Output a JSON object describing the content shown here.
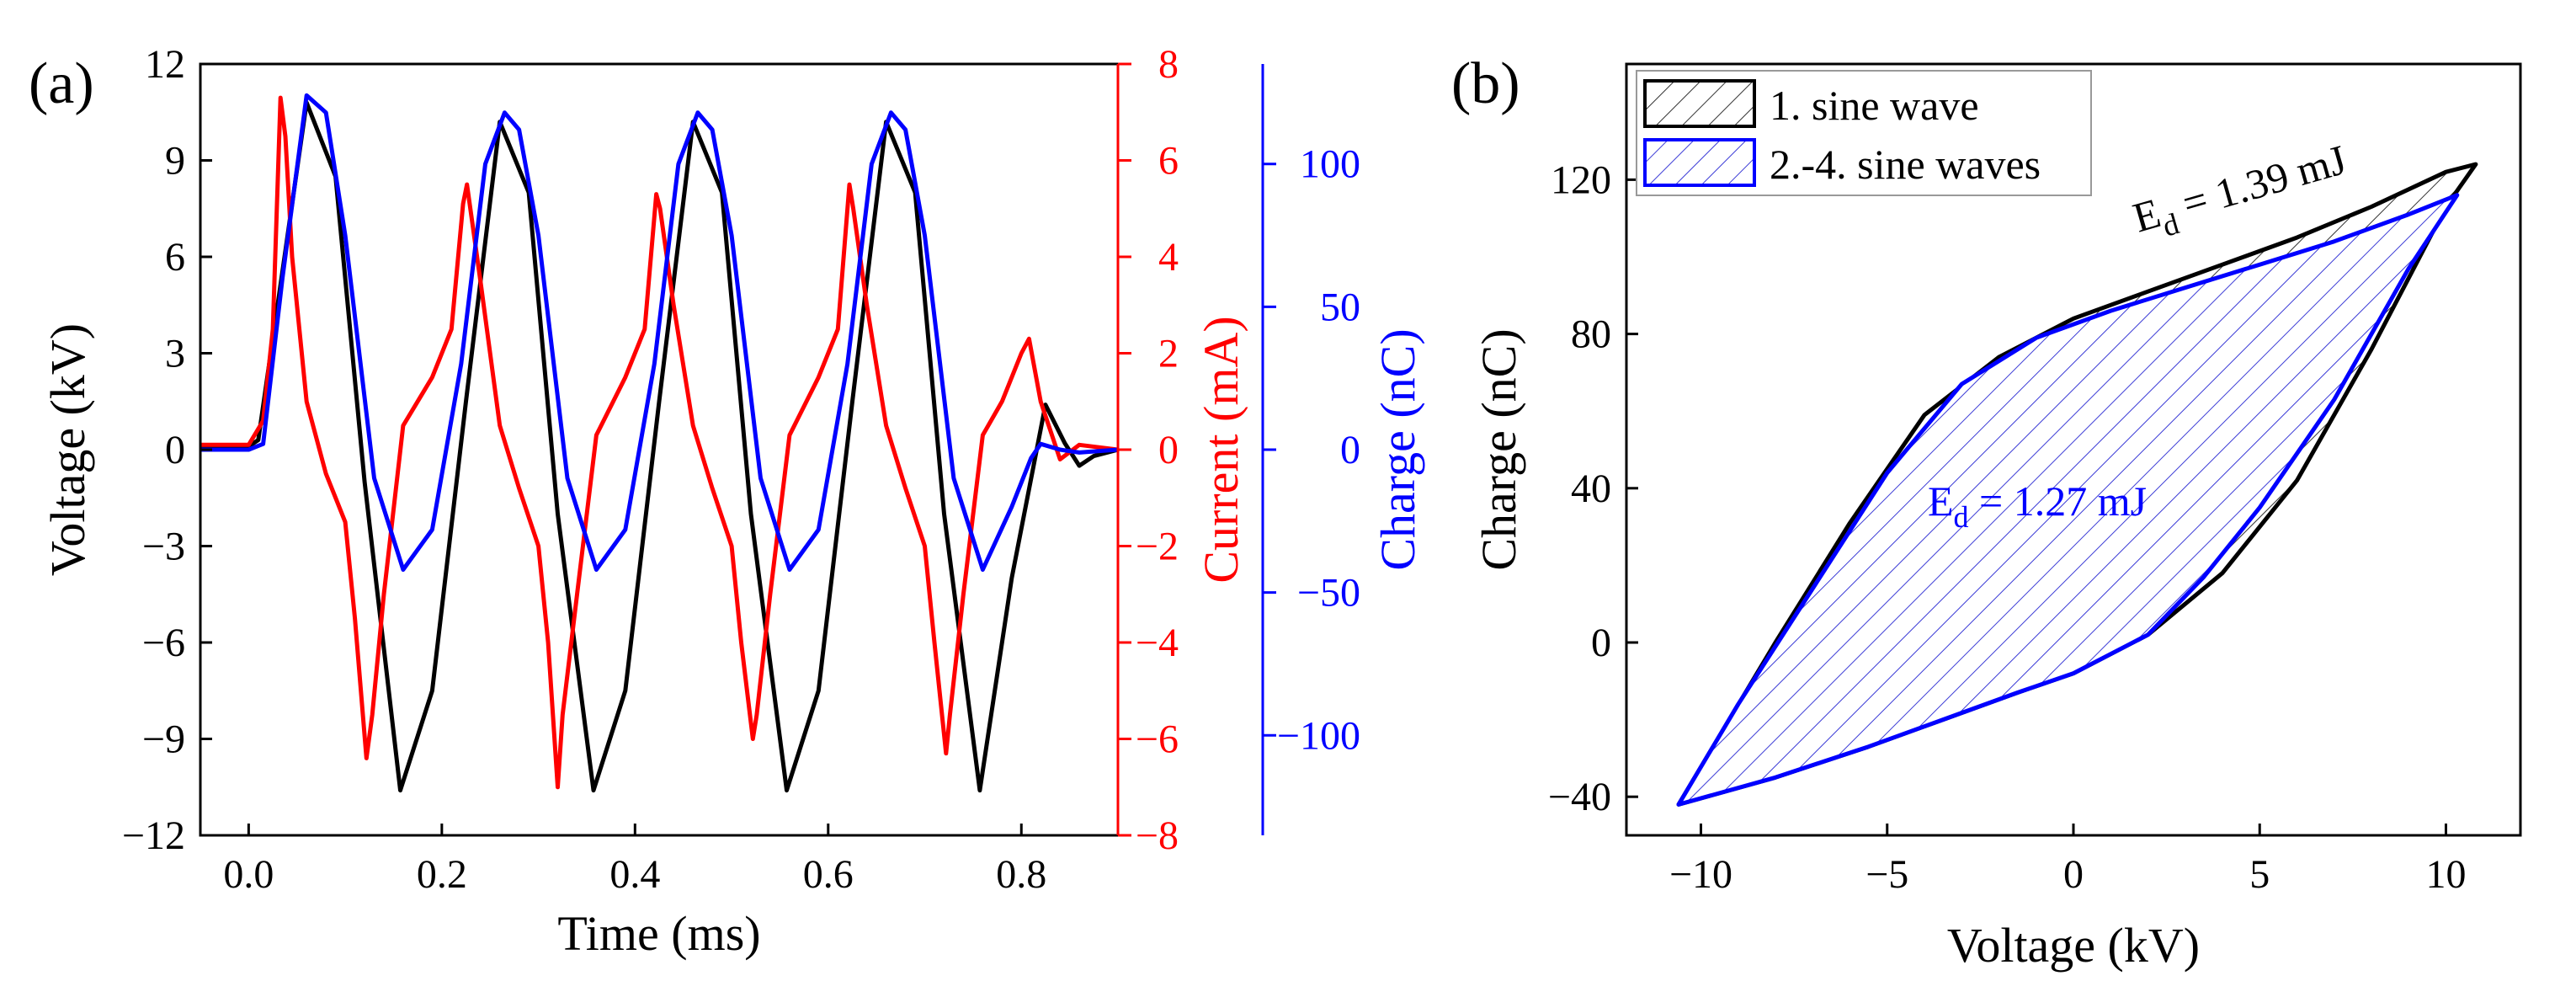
{
  "figure": {
    "panel_a_label": "(a)",
    "panel_b_label": "(b)",
    "colors": {
      "voltage": "#000000",
      "current": "#ff0000",
      "charge": "#0000ff",
      "fill_1": "#333333",
      "fill_2": "#3333cc"
    }
  },
  "chart_data": [
    {
      "type": "line",
      "panel": "(a)",
      "title": "",
      "xlabel": "Time (ms)",
      "xlim": [
        -0.05,
        0.9
      ],
      "xticks": [
        "0.0",
        "0.2",
        "0.4",
        "0.6",
        "0.8"
      ],
      "axes": {
        "voltage": {
          "label": "Voltage (kV)",
          "lim": [
            -12,
            12
          ],
          "ticks": [
            "−12",
            "−9",
            "−6",
            "−3",
            "0",
            "3",
            "6",
            "9",
            "12"
          ],
          "color": "#000000"
        },
        "current": {
          "label": "Current (mA)",
          "lim": [
            -8,
            8
          ],
          "ticks": [
            "−8",
            "−6",
            "−4",
            "−2",
            "0",
            "2",
            "4",
            "6",
            "8"
          ],
          "color": "#ff0000"
        },
        "charge": {
          "label": "Charge (nC)",
          "lim": [
            -135,
            135
          ],
          "ticks": [
            "−100",
            "−50",
            "0",
            "50",
            "100"
          ],
          "tick_values": [
            -100,
            -50,
            0,
            50,
            100
          ],
          "color": "#0000ff"
        }
      },
      "series": [
        {
          "name": "Voltage",
          "axis": "voltage",
          "color": "#000000",
          "x": [
            -0.05,
            0.0,
            0.01,
            0.03,
            0.06,
            0.09,
            0.12,
            0.157,
            0.19,
            0.225,
            0.26,
            0.29,
            0.32,
            0.357,
            0.39,
            0.425,
            0.46,
            0.49,
            0.52,
            0.557,
            0.59,
            0.625,
            0.66,
            0.69,
            0.72,
            0.757,
            0.79,
            0.825,
            0.845,
            0.86,
            0.875,
            0.9
          ],
          "y": [
            0.1,
            0.1,
            0.3,
            4.5,
            10.8,
            8.5,
            -1.0,
            -10.6,
            -7.5,
            1.5,
            10.2,
            8.0,
            -2.0,
            -10.6,
            -7.5,
            1.5,
            10.2,
            8.0,
            -2.0,
            -10.6,
            -7.5,
            1.5,
            10.2,
            8.0,
            -2.0,
            -10.6,
            -4.0,
            1.4,
            0.2,
            -0.5,
            -0.2,
            0.0
          ]
        },
        {
          "name": "Current",
          "axis": "current",
          "color": "#ff0000",
          "x": [
            -0.05,
            0.0,
            0.015,
            0.025,
            0.033,
            0.038,
            0.045,
            0.06,
            0.08,
            0.1,
            0.11,
            0.122,
            0.128,
            0.14,
            0.16,
            0.19,
            0.21,
            0.222,
            0.226,
            0.24,
            0.26,
            0.28,
            0.3,
            0.31,
            0.32,
            0.325,
            0.34,
            0.36,
            0.39,
            0.41,
            0.422,
            0.426,
            0.44,
            0.46,
            0.48,
            0.5,
            0.51,
            0.522,
            0.526,
            0.54,
            0.56,
            0.59,
            0.61,
            0.622,
            0.626,
            0.64,
            0.66,
            0.68,
            0.7,
            0.71,
            0.722,
            0.726,
            0.74,
            0.76,
            0.78,
            0.8,
            0.808,
            0.82,
            0.84,
            0.86,
            0.9
          ],
          "y": [
            0.1,
            0.1,
            0.6,
            2.5,
            7.3,
            6.5,
            4.0,
            1.0,
            -0.5,
            -1.5,
            -3.5,
            -6.4,
            -5.5,
            -3.0,
            0.5,
            1.5,
            2.5,
            5.1,
            5.5,
            3.5,
            0.5,
            -0.8,
            -2.0,
            -4.0,
            -7.0,
            -5.5,
            -3.0,
            0.3,
            1.5,
            2.5,
            5.3,
            5.0,
            3.0,
            0.5,
            -0.8,
            -2.0,
            -4.0,
            -6.0,
            -5.5,
            -3.0,
            0.3,
            1.5,
            2.5,
            5.5,
            5.0,
            3.0,
            0.5,
            -0.8,
            -2.0,
            -4.0,
            -6.3,
            -5.5,
            -3.0,
            0.3,
            1.0,
            2.0,
            2.3,
            1.0,
            -0.2,
            0.1,
            0.0
          ]
        },
        {
          "name": "Charge",
          "axis": "charge",
          "color": "#0000ff",
          "x": [
            -0.05,
            0.0,
            0.015,
            0.035,
            0.06,
            0.08,
            0.1,
            0.13,
            0.16,
            0.19,
            0.22,
            0.245,
            0.265,
            0.28,
            0.3,
            0.33,
            0.36,
            0.39,
            0.42,
            0.445,
            0.465,
            0.48,
            0.5,
            0.53,
            0.56,
            0.59,
            0.62,
            0.645,
            0.665,
            0.68,
            0.7,
            0.73,
            0.76,
            0.79,
            0.81,
            0.82,
            0.84,
            0.86,
            0.9
          ],
          "y": [
            0.0,
            0.0,
            2.0,
            60.0,
            124.0,
            118.0,
            75.0,
            -10.0,
            -42.0,
            -28.0,
            30.0,
            100.0,
            118.0,
            112.0,
            75.0,
            -10.0,
            -42.0,
            -28.0,
            30.0,
            100.0,
            118.0,
            112.0,
            75.0,
            -10.0,
            -42.0,
            -28.0,
            30.0,
            100.0,
            118.0,
            112.0,
            75.0,
            -10.0,
            -42.0,
            -20.0,
            -3.0,
            2.0,
            0.0,
            -1.0,
            0.0
          ]
        }
      ]
    },
    {
      "type": "line",
      "panel": "(b)",
      "title": "",
      "xlabel": "Voltage (kV)",
      "ylabel": "Charge (nC)",
      "xlim": [
        -12,
        12
      ],
      "ylim": [
        -50,
        150
      ],
      "xticks": [
        "−10",
        "−5",
        "0",
        "5",
        "10"
      ],
      "xtick_values": [
        -10,
        -5,
        0,
        5,
        10
      ],
      "yticks": [
        "−40",
        "0",
        "40",
        "80",
        "120"
      ],
      "ytick_values": [
        -40,
        0,
        40,
        80,
        120
      ],
      "legend": [
        "1. sine wave",
        "2.-4. sine waves"
      ],
      "annotations": [
        {
          "text": "E",
          "sub": "d",
          "rest": " = 1.39 mJ",
          "color": "#000000"
        },
        {
          "text": "E",
          "sub": "d",
          "rest": " = 1.27 mJ",
          "color": "#0000ff"
        }
      ],
      "series": [
        {
          "name": "1. sine wave",
          "color": "#000000",
          "fill": "hatch-dark",
          "x": [
            -10.6,
            -8.0,
            -5.5,
            -3.5,
            -1.5,
            0.0,
            2.0,
            4.0,
            6.0,
            8.0,
            10.0,
            10.8,
            10.0,
            8.0,
            6.0,
            4.0,
            2.0,
            0.0,
            -2.0,
            -4.0,
            -6.0,
            -8.0,
            -10.6
          ],
          "y": [
            -42.0,
            -35.0,
            -27.0,
            -20.0,
            -13.0,
            -8.0,
            2.0,
            18.0,
            42.0,
            76.0,
            113.0,
            124.0,
            122.0,
            113.0,
            105.0,
            98.0,
            91.0,
            84.0,
            74.0,
            59.0,
            31.0,
            0.0,
            -42.0
          ]
        },
        {
          "name": "2.-4. sine waves",
          "color": "#0000ff",
          "fill": "hatch-blue",
          "x": [
            -10.6,
            -8.0,
            -5.5,
            -3.5,
            -1.5,
            0.0,
            2.0,
            3.5,
            5.0,
            7.0,
            9.0,
            10.3,
            9.0,
            7.0,
            5.0,
            3.0,
            1.0,
            -1.0,
            -3.0,
            -5.0,
            -7.0,
            -9.0,
            -10.6
          ],
          "y": [
            -42.0,
            -35.0,
            -27.0,
            -20.0,
            -13.0,
            -8.0,
            2.0,
            17.0,
            35.0,
            63.0,
            97.0,
            116.0,
            111.0,
            104.0,
            98.0,
            92.0,
            86.0,
            79.0,
            67.0,
            44.0,
            14.0,
            -16.0,
            -42.0
          ]
        }
      ]
    }
  ]
}
